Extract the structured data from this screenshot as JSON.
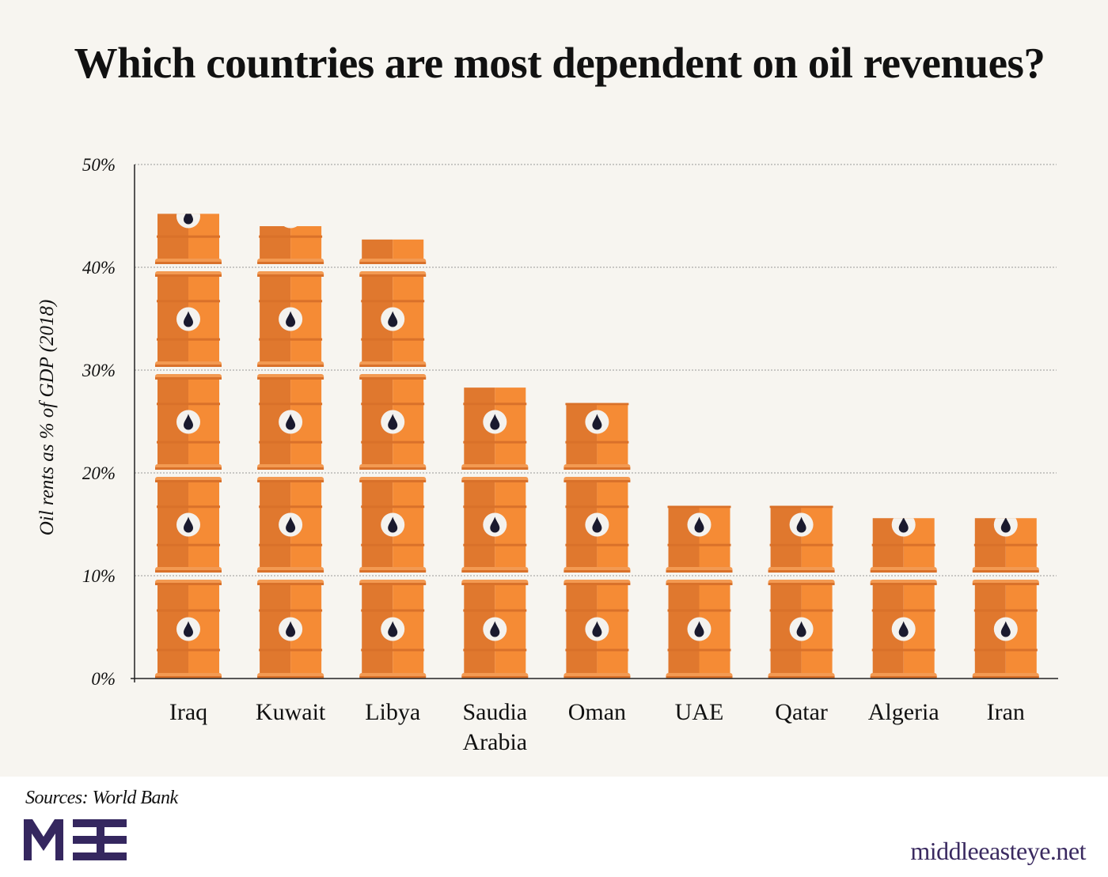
{
  "title": "Which countries are most dependent on oil revenues?",
  "source": "Sources: World Bank",
  "logo_text": "MEE",
  "site": "middleeasteye.net",
  "colors": {
    "barrel_light": "#f58b35",
    "barrel_dark": "#e0782e",
    "rim": "#d9712a",
    "drop": "#1a1a2e",
    "logo": "#35275f",
    "background": "#f7f5f0"
  },
  "chart_data": {
    "type": "bar",
    "style": "pictogram-oil-barrels",
    "title": "Which countries are most dependent on oil revenues?",
    "ylabel": "Oil rents as % of GDP (2018)",
    "xlabel": "",
    "ylim": [
      0,
      50
    ],
    "yticks": [
      "0%",
      "10%",
      "20%",
      "30%",
      "40%",
      "50%"
    ],
    "grid": true,
    "categories": [
      "Iraq",
      "Kuwait",
      "Libya",
      "Saudia Arabia",
      "Oman",
      "UAE",
      "Qatar",
      "Algeria",
      "Iran"
    ],
    "category_lines": [
      [
        "Iraq"
      ],
      [
        "Kuwait"
      ],
      [
        "Libya"
      ],
      [
        "Saudia",
        "Arabia"
      ],
      [
        "Oman"
      ],
      [
        "UAE"
      ],
      [
        "Qatar"
      ],
      [
        "Algeria"
      ],
      [
        "Iran"
      ]
    ],
    "values": [
      45.2,
      44.0,
      42.7,
      28.3,
      26.8,
      16.8,
      16.8,
      15.6,
      15.6
    ]
  }
}
